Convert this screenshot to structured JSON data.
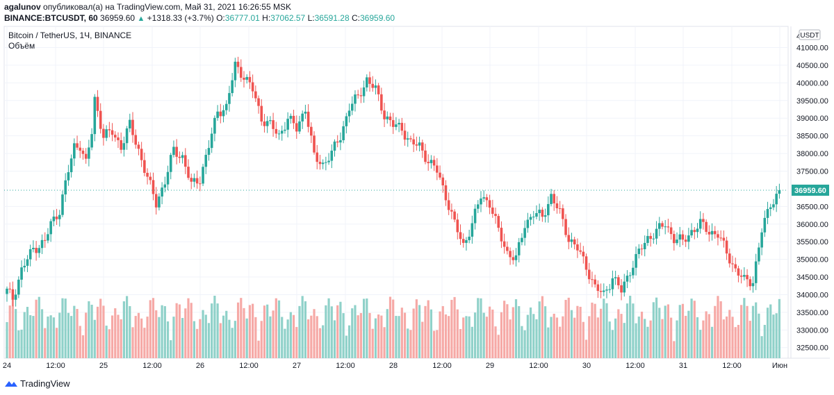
{
  "header": {
    "user": "agalunov",
    "published_text": "опубликовал(а) на TradingView.com, Май 31, 2021 16:26:55 MSK",
    "symbol": "BINANCE:BTCUSDT, 60",
    "last": "36959.60",
    "triangle": "▲",
    "change": "+1318.33 (+3.7%)",
    "o_label": "O:",
    "o_val": "36777.01",
    "h_label": "H:",
    "h_val": "37062.57",
    "l_label": "L:",
    "l_val": "36591.28",
    "c_label": "C:",
    "c_val": "36959.60"
  },
  "footer": {
    "brand": "TradingView"
  },
  "colors": {
    "up": "#26a69a",
    "down": "#ef5350",
    "up_vol": "#8fd1c9",
    "down_vol": "#f6a9a6",
    "grid": "#f0f3fa"
  },
  "chart_data": {
    "type": "candlestick",
    "title": "Bitcoin / TetherUS, 1Ч, BINANCE",
    "subtitle": "Объём",
    "currency_label": "USDT",
    "last_price": 36959.6,
    "last_price_label": "36959.60",
    "y_ticks": [
      "41000.00",
      "40500.00",
      "40000.00",
      "39500.00",
      "39000.00",
      "38500.00",
      "38000.00",
      "37500.00",
      "36500.00",
      "36000.00",
      "35500.00",
      "35000.00",
      "34500.00",
      "34000.00",
      "33500.00",
      "33000.00",
      "32500.00"
    ],
    "y_top_partial": "4",
    "ylim": [
      32200,
      41600
    ],
    "x_ticks": [
      "24",
      "12:00",
      "25",
      "12:00",
      "26",
      "12:00",
      "27",
      "12:00",
      "28",
      "12:00",
      "29",
      "12:00",
      "30",
      "12:00",
      "31",
      "12:00",
      "Июн"
    ],
    "candle_anchors": [
      [
        0,
        34100
      ],
      [
        2,
        33900
      ],
      [
        5,
        34700
      ],
      [
        9,
        35300
      ],
      [
        13,
        35500
      ],
      [
        15,
        36000
      ],
      [
        18,
        36400
      ],
      [
        21,
        37500
      ],
      [
        23,
        38200
      ],
      [
        25,
        38250
      ],
      [
        27,
        37700
      ],
      [
        29,
        38600
      ],
      [
        30,
        39550
      ],
      [
        33,
        38500
      ],
      [
        36,
        38600
      ],
      [
        39,
        38200
      ],
      [
        42,
        38800
      ],
      [
        45,
        38100
      ],
      [
        48,
        37300
      ],
      [
        51,
        36600
      ],
      [
        54,
        37200
      ],
      [
        57,
        38100
      ],
      [
        60,
        37900
      ],
      [
        63,
        37100
      ],
      [
        66,
        37300
      ],
      [
        69,
        38200
      ],
      [
        72,
        39200
      ],
      [
        75,
        39300
      ],
      [
        78,
        40500
      ],
      [
        81,
        40200
      ],
      [
        84,
        39800
      ],
      [
        87,
        39000
      ],
      [
        90,
        38800
      ],
      [
        93,
        38500
      ],
      [
        96,
        39000
      ],
      [
        99,
        38700
      ],
      [
        102,
        39300
      ],
      [
        105,
        37900
      ],
      [
        108,
        37700
      ],
      [
        111,
        38000
      ],
      [
        114,
        38500
      ],
      [
        117,
        39300
      ],
      [
        120,
        39600
      ],
      [
        123,
        40100
      ],
      [
        126,
        39800
      ],
      [
        129,
        39100
      ],
      [
        132,
        38800
      ],
      [
        135,
        38700
      ],
      [
        138,
        38300
      ],
      [
        141,
        38200
      ],
      [
        144,
        37800
      ],
      [
        147,
        37500
      ],
      [
        150,
        36800
      ],
      [
        153,
        36000
      ],
      [
        156,
        35400
      ],
      [
        159,
        36000
      ],
      [
        162,
        36800
      ],
      [
        165,
        36600
      ],
      [
        168,
        35800
      ],
      [
        171,
        35200
      ],
      [
        174,
        35000
      ],
      [
        177,
        36000
      ],
      [
        180,
        36300
      ],
      [
        183,
        36200
      ],
      [
        186,
        36800
      ],
      [
        189,
        36300
      ],
      [
        192,
        35600
      ],
      [
        195,
        35300
      ],
      [
        198,
        34800
      ],
      [
        201,
        34200
      ],
      [
        204,
        34000
      ],
      [
        207,
        34500
      ],
      [
        210,
        34100
      ],
      [
        213,
        34700
      ],
      [
        216,
        35200
      ],
      [
        219,
        35600
      ],
      [
        222,
        35800
      ],
      [
        225,
        36000
      ],
      [
        228,
        35600
      ],
      [
        231,
        35500
      ],
      [
        234,
        35800
      ],
      [
        237,
        36000
      ],
      [
        240,
        35800
      ],
      [
        243,
        35700
      ],
      [
        246,
        35200
      ],
      [
        249,
        34700
      ],
      [
        252,
        34400
      ],
      [
        255,
        34400
      ],
      [
        258,
        35800
      ],
      [
        261,
        36600
      ],
      [
        263,
        36800
      ],
      [
        264,
        36960
      ]
    ],
    "volume_note": "volume histogram bars drawn below price series"
  }
}
